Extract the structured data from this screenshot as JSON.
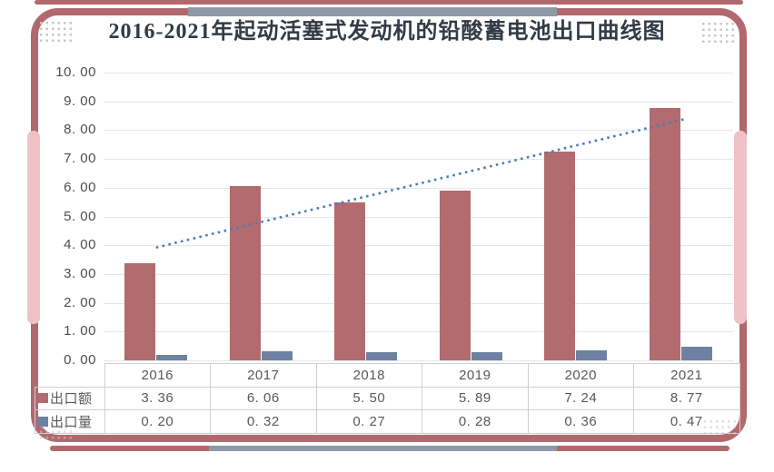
{
  "title": "2016-2021年起动活塞式发动机的铅酸蓄电池出口曲线图",
  "colors": {
    "frame": "#b2696d",
    "frame_pink": "#eec2c7",
    "gray_accent": "#8d99a6",
    "bar_export_value": "#b26b6e",
    "bar_export_volume": "#6d82a0",
    "trend_line": "#4d7db8",
    "grid_line": "#e3e7eb",
    "table_border": "#cfcfcf",
    "text_gray": "#595959"
  },
  "y_axis": {
    "tick_labels": [
      "10. 00",
      "9. 00",
      "8. 00",
      "7. 00",
      "6. 00",
      "5. 00",
      "4. 00",
      "3. 00",
      "2. 00",
      "1. 00",
      "0. 00"
    ]
  },
  "chart_data": {
    "type": "bar",
    "title": "2016-2021年起动活塞式发动机的铅酸蓄电池出口曲线图",
    "categories": [
      "2016",
      "2017",
      "2018",
      "2019",
      "2020",
      "2021"
    ],
    "series": [
      {
        "name": "出口额",
        "values": [
          3.36,
          6.06,
          5.5,
          5.89,
          7.24,
          8.77
        ],
        "color": "#b26b6e"
      },
      {
        "name": "出口量",
        "values": [
          0.2,
          0.32,
          0.27,
          0.28,
          0.36,
          0.47
        ],
        "color": "#6d82a0"
      }
    ],
    "trendline": {
      "for_series": "出口额",
      "style": "dotted",
      "start_value": 3.92,
      "end_value": 8.35,
      "color": "#4d7db8"
    },
    "xlabel": "",
    "ylabel": "",
    "ylim": [
      0,
      10
    ],
    "grid": true,
    "legend_position": "table-left-column"
  },
  "table": {
    "corner_label": "",
    "header": [
      "2016",
      "2017",
      "2018",
      "2019",
      "2020",
      "2021"
    ],
    "rows": [
      {
        "legend": "出口额",
        "cells": [
          "3. 36",
          "6. 06",
          "5. 50",
          "5. 89",
          "7. 24",
          "8. 77"
        ]
      },
      {
        "legend": "出口量",
        "cells": [
          "0. 20",
          "0. 32",
          "0. 27",
          "0. 28",
          "0. 36",
          "0. 47"
        ]
      }
    ]
  }
}
